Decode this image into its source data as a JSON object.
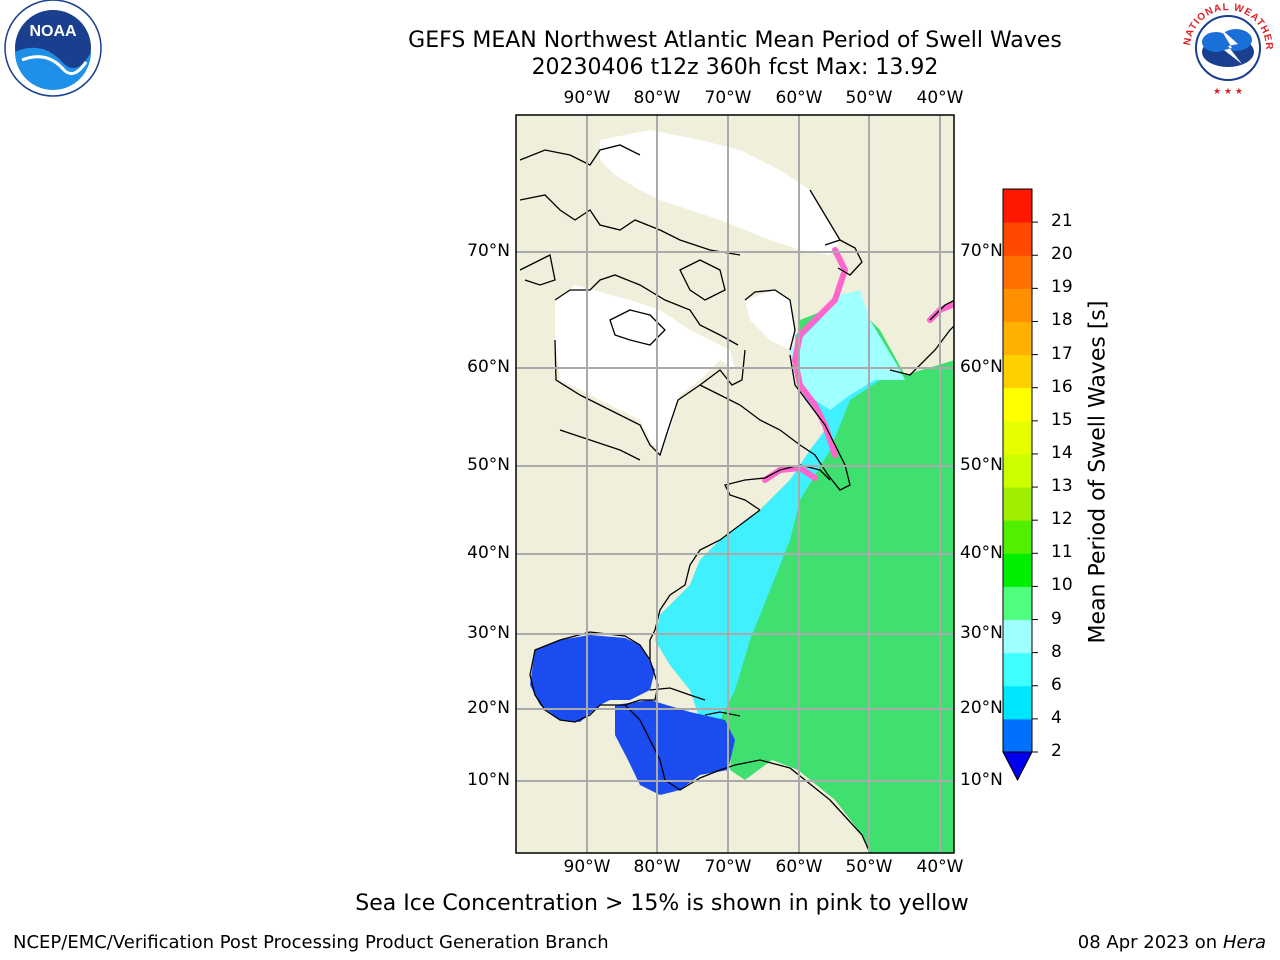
{
  "title": {
    "line1": "GEFS MEAN Northwest Atlantic Mean Period of Swell Waves",
    "line2": "20230406 t12z 360h fcst   Max: 13.92"
  },
  "logos": {
    "noaa_text": "NOAA",
    "nws_text": "NATIONAL WEATHER SERVICE"
  },
  "axes": {
    "lon_labels": [
      "90°W",
      "80°W",
      "70°W",
      "60°W",
      "50°W",
      "40°W"
    ],
    "lat_labels": [
      "70°N",
      "60°N",
      "50°N",
      "40°N",
      "30°N",
      "20°N",
      "10°N"
    ]
  },
  "colorbar": {
    "label": "Mean Period of Swell Waves [s]",
    "ticks": [
      "2",
      "4",
      "6",
      "8",
      "9",
      "10",
      "11",
      "12",
      "13",
      "14",
      "15",
      "16",
      "17",
      "18",
      "19",
      "20",
      "21"
    ],
    "colors": [
      "#0070ff",
      "#00e6ff",
      "#40ffff",
      "#a0ffff",
      "#50ff80",
      "#00ee00",
      "#50f000",
      "#a0ee00",
      "#ccff00",
      "#e6ff00",
      "#ffff00",
      "#ffd000",
      "#ffb000",
      "#ff9000",
      "#ff7000",
      "#ff4800",
      "#ff1800"
    ],
    "under_color": "#0000ee"
  },
  "colors": {
    "land": "#efefdc",
    "ice": "#ffffff",
    "ice_edge": "#ff66cc",
    "gulf": "#1a4cf0",
    "shelf": "#40f0ff",
    "open_ocean": "#40e070"
  },
  "caption": "Sea Ice Concentration > 15% is shown in pink to yellow",
  "footer": {
    "left": "NCEP/EMC/Verification Post Processing Product Generation Branch",
    "right_date": "08 Apr 2023 on ",
    "right_host": "Hera"
  }
}
